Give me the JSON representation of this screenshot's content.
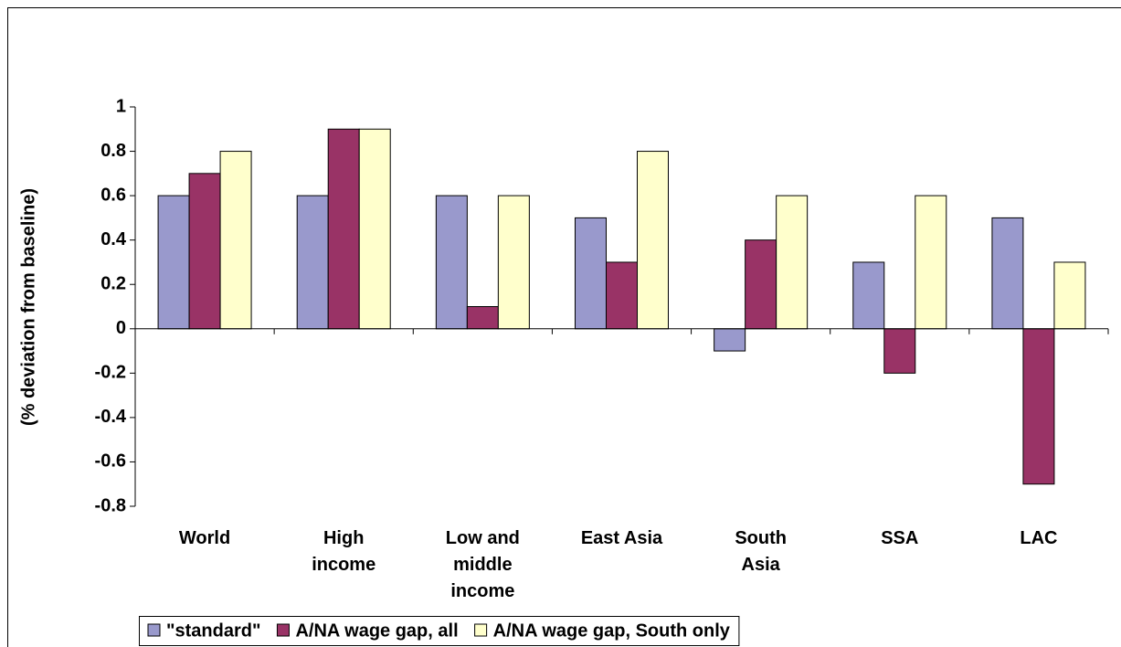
{
  "chart_data": {
    "type": "bar",
    "y_axis_label": "(% deviation from baseline)",
    "categories": [
      "World",
      "High income",
      "Low and middle income",
      "East Asia",
      "South Asia",
      "SSA",
      "LAC"
    ],
    "series": [
      {
        "name": "\"standard\"",
        "color": "#9999cc",
        "values": [
          0.6,
          0.6,
          0.6,
          0.5,
          -0.1,
          0.3,
          0.5
        ]
      },
      {
        "name": "A/NA wage gap, all",
        "color": "#993366",
        "values": [
          0.7,
          0.9,
          0.1,
          0.3,
          0.4,
          -0.2,
          -0.7
        ]
      },
      {
        "name": "A/NA wage gap, South only",
        "color": "#ffffcc",
        "values": [
          0.8,
          0.9,
          0.6,
          0.8,
          0.6,
          0.6,
          0.3
        ]
      }
    ],
    "ylim": [
      -0.8,
      1
    ],
    "yticks": [
      -0.8,
      -0.6,
      -0.4,
      -0.2,
      0,
      0.2,
      0.4,
      0.6,
      0.8,
      1
    ],
    "legend": "bottom"
  }
}
